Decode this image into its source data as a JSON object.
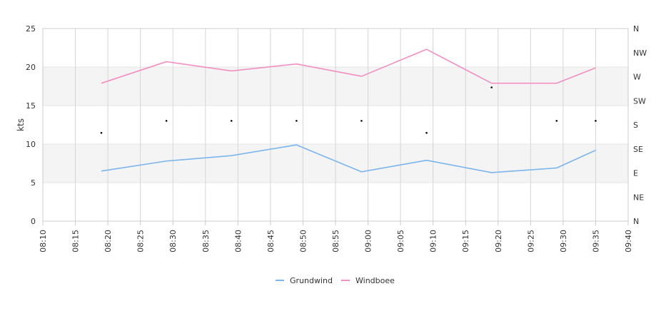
{
  "chart_data": {
    "type": "line",
    "title": "",
    "ylabel": "kts",
    "xlabel": "",
    "x_ticks": [
      "08:10",
      "08:15",
      "08:20",
      "08:25",
      "08:30",
      "08:35",
      "08:40",
      "08:45",
      "08:50",
      "08:55",
      "09:00",
      "09:05",
      "09:10",
      "09:15",
      "09:20",
      "09:25",
      "09:30",
      "09:35",
      "09:40"
    ],
    "xlim": [
      "08:10",
      "09:40"
    ],
    "y_ticks": [
      0,
      5,
      10,
      15,
      20,
      25
    ],
    "ylim": [
      0,
      25
    ],
    "y2_ticks": [
      "N",
      "NE",
      "E",
      "SE",
      "S",
      "SW",
      "W",
      "NW",
      "N"
    ],
    "y2_lim_degrees": [
      0,
      360
    ],
    "x": [
      "08:19",
      "08:29",
      "08:39",
      "08:49",
      "08:59",
      "09:09",
      "09:19",
      "09:29",
      "09:35"
    ],
    "series": [
      {
        "name": "Grundwind",
        "color": "#7cb5ec",
        "values": [
          6.5,
          7.8,
          8.5,
          9.9,
          6.4,
          7.9,
          6.3,
          6.9,
          9.2
        ]
      },
      {
        "name": "Windboee",
        "color": "#f28fc0",
        "values": [
          17.9,
          20.7,
          19.5,
          20.4,
          18.8,
          22.3,
          17.9,
          17.9,
          19.9
        ]
      }
    ],
    "direction": {
      "color": "#000000",
      "points": [
        {
          "x": "08:19",
          "deg": 165
        },
        {
          "x": "08:29",
          "deg": 187.5
        },
        {
          "x": "08:39",
          "deg": 187.5
        },
        {
          "x": "08:49",
          "deg": 187.5
        },
        {
          "x": "08:59",
          "deg": 187.5
        },
        {
          "x": "09:09",
          "deg": 165
        },
        {
          "x": "09:19",
          "deg": 250
        },
        {
          "x": "09:29",
          "deg": 187.5
        },
        {
          "x": "09:35",
          "deg": 187.5
        }
      ]
    },
    "plot_bands_y": [
      [
        5,
        10
      ],
      [
        15,
        20
      ]
    ],
    "grid": true,
    "legend_position": "bottom-center",
    "colors": {
      "band": "#f4f4f4",
      "grid": "#d6d6d6"
    }
  }
}
